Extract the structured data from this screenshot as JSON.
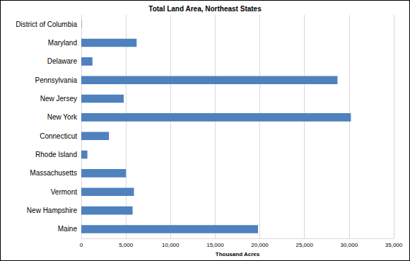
{
  "chart_data": {
    "type": "bar",
    "orientation": "horizontal",
    "title": "Total Land Area, Northeast States",
    "x_label": "Thousand Acres",
    "categories": [
      "Maine",
      "New Hampshire",
      "Vermont",
      "Massachusetts",
      "Rhode Island",
      "Connecticut",
      "New York",
      "New Jersey",
      "Pennsylvania",
      "Delaware",
      "Maryland",
      "District of Columbia"
    ],
    "values": [
      19800,
      5750,
      5900,
      5000,
      680,
      3100,
      30200,
      4750,
      28700,
      1250,
      6200,
      40
    ],
    "color": "#4f81bd",
    "xlim": [
      0,
      35000
    ],
    "xticks": [
      0,
      {
        "value": 5000,
        "label": "5,000"
      },
      {
        "value": 10000,
        "label": "10,000"
      },
      {
        "value": 15000,
        "label": "15,000"
      },
      {
        "value": 20000,
        "label": "20,000"
      },
      {
        "value": 25000,
        "label": "25,000"
      },
      {
        "value": 30000,
        "label": "30,000"
      },
      {
        "value": 35000,
        "label": "35,000"
      }
    ],
    "grid": true
  }
}
